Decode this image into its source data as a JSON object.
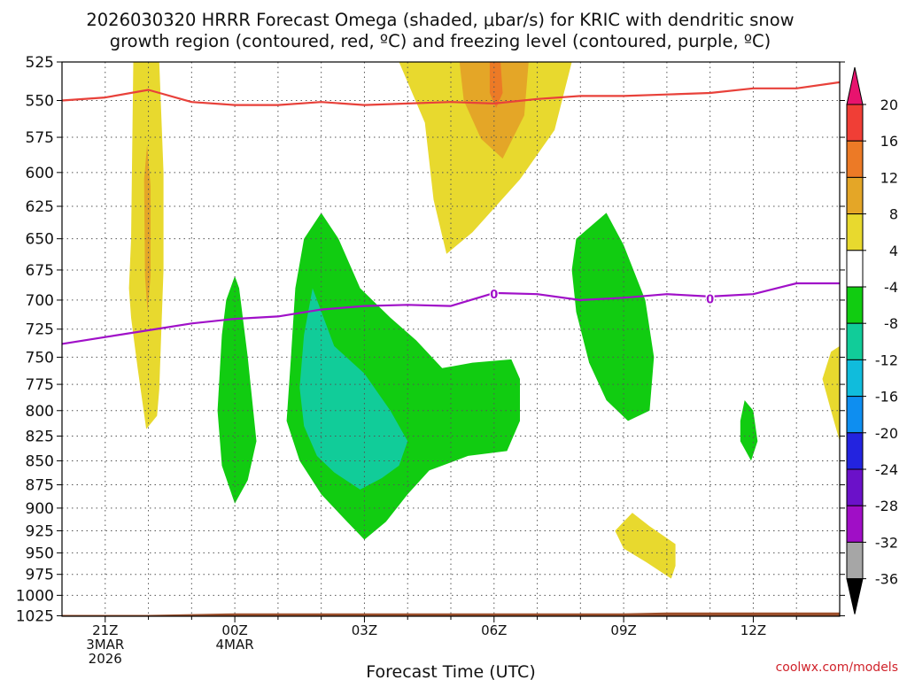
{
  "chart_data": {
    "type": "heatmap",
    "title_line1": "2026030320 HRRR Forecast Omega (shaded, μbar/s) for KRIC with dendritic snow",
    "title_line2": "growth region (contoured, red, ºC) and freezing level (contoured, purple, ºC)",
    "xlabel": "Forecast Time (UTC)",
    "watermark": "coolwx.com/models",
    "x_range_hours": [
      -1.0,
      17.0
    ],
    "y_ticks": [
      525,
      550,
      575,
      600,
      625,
      650,
      675,
      700,
      725,
      750,
      775,
      800,
      825,
      850,
      875,
      900,
      925,
      950,
      975,
      1000,
      1025
    ],
    "x_ticks": [
      {
        "hour": 0,
        "lines": [
          "21Z",
          "3MAR",
          "2026"
        ]
      },
      {
        "hour": 3,
        "lines": [
          "00Z",
          "4MAR"
        ]
      },
      {
        "hour": 6,
        "lines": [
          "03Z"
        ]
      },
      {
        "hour": 9,
        "lines": [
          "06Z"
        ]
      },
      {
        "hour": 12,
        "lines": [
          "09Z"
        ]
      },
      {
        "hour": 15,
        "lines": [
          "12Z"
        ]
      }
    ],
    "colorbar": {
      "levels": [
        "20",
        "16",
        "12",
        "8",
        "4",
        "-4",
        "-8",
        "-12",
        "-16",
        "-20",
        "-24",
        "-28",
        "-32",
        "-36"
      ],
      "colors": [
        "#e8136e",
        "#f03e36",
        "#ec7a26",
        "#e4a627",
        "#e8d92e",
        "#ffffff",
        "#11cc11",
        "#11cc99",
        "#10bcdc",
        "#0e8ef0",
        "#2323df",
        "#6b11c9",
        "#a00ec6",
        "#a6a6a6",
        "#000000"
      ],
      "color_labels": [
        "magenta",
        "red",
        "orange",
        "orange-gold",
        "yellow",
        "white",
        "green",
        "teal",
        "cyan",
        "light-blue",
        "blue",
        "indigo",
        "purple",
        "gray",
        "black"
      ]
    },
    "freezing_level_label": "0",
    "dgz_contour": {
      "name": "dendritic snow growth region",
      "color": "#e8413a",
      "points": [
        [
          -1.0,
          550
        ],
        [
          0.0,
          548
        ],
        [
          1.0,
          543
        ],
        [
          2.0,
          551
        ],
        [
          3.0,
          553
        ],
        [
          4.0,
          553
        ],
        [
          5.0,
          551
        ],
        [
          6.0,
          553
        ],
        [
          7.0,
          552
        ],
        [
          8.0,
          551
        ],
        [
          9.0,
          552
        ],
        [
          10.0,
          549
        ],
        [
          11.0,
          547
        ],
        [
          12.0,
          547
        ],
        [
          13.0,
          546
        ],
        [
          14.0,
          545
        ],
        [
          15.0,
          542
        ],
        [
          16.0,
          542
        ],
        [
          17.0,
          538
        ]
      ]
    },
    "freezing_level": {
      "name": "freezing level (0 ºC)",
      "color": "#a010c8",
      "points": [
        [
          -1.0,
          738
        ],
        [
          0.0,
          732
        ],
        [
          1.0,
          726
        ],
        [
          2.0,
          720
        ],
        [
          3.0,
          716
        ],
        [
          4.0,
          714
        ],
        [
          5.0,
          708
        ],
        [
          6.0,
          705
        ],
        [
          7.0,
          704
        ],
        [
          8.0,
          705
        ],
        [
          9.0,
          694
        ],
        [
          10.0,
          695
        ],
        [
          11.0,
          700
        ],
        [
          12.0,
          698
        ],
        [
          13.0,
          695
        ],
        [
          14.0,
          697
        ],
        [
          15.0,
          695
        ],
        [
          16.0,
          686
        ],
        [
          17.0,
          686
        ]
      ]
    },
    "ground": {
      "color": "#9c4f2b",
      "points": [
        [
          -1.0,
          1024
        ],
        [
          1.0,
          1024
        ],
        [
          2.0,
          1023
        ],
        [
          3.0,
          1022
        ],
        [
          10.0,
          1022
        ],
        [
          12.0,
          1022
        ],
        [
          13.0,
          1021
        ],
        [
          17.0,
          1021
        ]
      ]
    },
    "omega_regions": [
      {
        "name": "ascent-band-early",
        "range": "4 to 8",
        "color": "#e8d92e",
        "points": [
          [
            0.65,
            525
          ],
          [
            1.25,
            525
          ],
          [
            1.35,
            600
          ],
          [
            1.35,
            675
          ],
          [
            1.3,
            725
          ],
          [
            1.25,
            780
          ],
          [
            1.2,
            805
          ],
          [
            0.95,
            818
          ],
          [
            0.75,
            760
          ],
          [
            0.6,
            715
          ],
          [
            0.55,
            690
          ],
          [
            0.6,
            650
          ]
        ]
      },
      {
        "name": "ascent-core-early",
        "range": "8 to 12",
        "color": "#e4a627",
        "points": [
          [
            0.9,
            605
          ],
          [
            0.97,
            580
          ],
          [
            1.05,
            610
          ],
          [
            1.05,
            680
          ],
          [
            0.98,
            710
          ],
          [
            0.92,
            680
          ]
        ]
      },
      {
        "name": "ascent-plume-upper",
        "range": "4 to 8",
        "color": "#e8d92e",
        "points": [
          [
            6.8,
            525
          ],
          [
            10.8,
            525
          ],
          [
            10.4,
            570
          ],
          [
            9.6,
            605
          ],
          [
            8.5,
            645
          ],
          [
            7.9,
            662
          ],
          [
            7.6,
            620
          ],
          [
            7.4,
            565
          ]
        ]
      },
      {
        "name": "ascent-plume-mid",
        "range": "8 to 12",
        "color": "#e4a627",
        "points": [
          [
            8.2,
            525
          ],
          [
            9.8,
            525
          ],
          [
            9.7,
            560
          ],
          [
            9.2,
            590
          ],
          [
            8.7,
            576
          ],
          [
            8.3,
            550
          ]
        ]
      },
      {
        "name": "ascent-plume-core",
        "range": "12 to 16",
        "color": "#ec7a26",
        "points": [
          [
            8.9,
            525
          ],
          [
            9.15,
            525
          ],
          [
            9.2,
            545
          ],
          [
            9.05,
            555
          ],
          [
            8.9,
            545
          ]
        ]
      },
      {
        "name": "descent-thin-left",
        "range": "-4 to -8",
        "color": "#11cc11",
        "points": [
          [
            3.0,
            680
          ],
          [
            3.1,
            690
          ],
          [
            3.3,
            750
          ],
          [
            3.5,
            830
          ],
          [
            3.3,
            870
          ],
          [
            3.0,
            895
          ],
          [
            2.7,
            855
          ],
          [
            2.6,
            800
          ],
          [
            2.7,
            730
          ],
          [
            2.8,
            700
          ]
        ]
      },
      {
        "name": "descent-main-mass",
        "range": "-4 to -8",
        "color": "#11cc11",
        "points": [
          [
            5.0,
            630
          ],
          [
            5.4,
            650
          ],
          [
            5.9,
            690
          ],
          [
            6.6,
            715
          ],
          [
            7.2,
            735
          ],
          [
            7.8,
            760
          ],
          [
            8.5,
            755
          ],
          [
            9.4,
            752
          ],
          [
            9.6,
            770
          ],
          [
            9.6,
            810
          ],
          [
            9.3,
            840
          ],
          [
            8.4,
            845
          ],
          [
            7.5,
            860
          ],
          [
            7.0,
            885
          ],
          [
            6.5,
            915
          ],
          [
            6.0,
            935
          ],
          [
            5.6,
            915
          ],
          [
            5.0,
            885
          ],
          [
            4.5,
            850
          ],
          [
            4.2,
            810
          ],
          [
            4.3,
            750
          ],
          [
            4.4,
            690
          ],
          [
            4.6,
            650
          ]
        ]
      },
      {
        "name": "descent-strong-core",
        "range": "-8 to -12",
        "color": "#11cc99",
        "points": [
          [
            4.8,
            690
          ],
          [
            5.3,
            740
          ],
          [
            6.0,
            765
          ],
          [
            6.6,
            800
          ],
          [
            7.0,
            830
          ],
          [
            6.8,
            855
          ],
          [
            6.4,
            868
          ],
          [
            5.9,
            880
          ],
          [
            5.3,
            862
          ],
          [
            4.9,
            845
          ],
          [
            4.6,
            815
          ],
          [
            4.5,
            778
          ],
          [
            4.6,
            730
          ]
        ]
      },
      {
        "name": "descent-right-cell",
        "range": "-4 to -8",
        "color": "#11cc11",
        "points": [
          [
            10.9,
            650
          ],
          [
            11.6,
            630
          ],
          [
            12.0,
            655
          ],
          [
            12.5,
            700
          ],
          [
            12.7,
            750
          ],
          [
            12.6,
            800
          ],
          [
            12.1,
            810
          ],
          [
            11.6,
            790
          ],
          [
            11.2,
            755
          ],
          [
            10.9,
            710
          ],
          [
            10.8,
            675
          ]
        ]
      },
      {
        "name": "descent-small-sliver",
        "range": "-4 to -8",
        "color": "#11cc11",
        "points": [
          [
            14.8,
            790
          ],
          [
            15.0,
            800
          ],
          [
            15.1,
            830
          ],
          [
            14.95,
            850
          ],
          [
            14.7,
            830
          ],
          [
            14.7,
            810
          ]
        ]
      },
      {
        "name": "ascent-lower-right",
        "range": "4 to 8",
        "color": "#e8d92e",
        "points": [
          [
            12.0,
            915
          ],
          [
            12.2,
            905
          ],
          [
            12.6,
            920
          ],
          [
            13.2,
            940
          ],
          [
            13.2,
            965
          ],
          [
            13.1,
            980
          ],
          [
            12.5,
            960
          ],
          [
            12.0,
            945
          ],
          [
            11.8,
            925
          ]
        ]
      },
      {
        "name": "ascent-edge-right",
        "range": "4 to 8",
        "color": "#e8d92e",
        "points": [
          [
            17.0,
            740
          ],
          [
            16.8,
            745
          ],
          [
            16.6,
            770
          ],
          [
            16.8,
            800
          ],
          [
            17.0,
            830
          ]
        ]
      }
    ]
  }
}
